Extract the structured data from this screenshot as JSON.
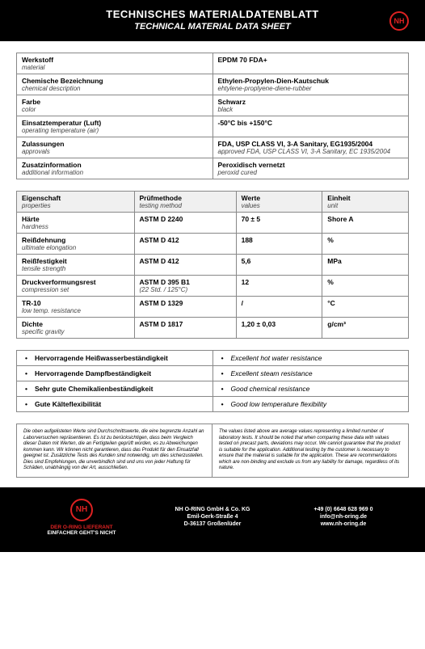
{
  "header": {
    "title_de": "TECHNISCHES MATERIALDATENBLATT",
    "title_en": "TECHNICAL MATERIAL DATA SHEET",
    "logo_text": "NH"
  },
  "info": [
    {
      "label_de": "Werkstoff",
      "label_en": "material",
      "value_de": "EPDM 70 FDA+",
      "value_en": ""
    },
    {
      "label_de": "Chemische Bezeichnung",
      "label_en": "chemical description",
      "value_de": "Ethylen-Propylen-Dien-Kautschuk",
      "value_en": "ehtylene-proplyene-diene-rubber"
    },
    {
      "label_de": "Farbe",
      "label_en": "color",
      "value_de": "Schwarz",
      "value_en": "black"
    },
    {
      "label_de": "Einsatztemperatur (Luft)",
      "label_en": "operating temperature (air)",
      "value_de": "-50°C bis +150°C",
      "value_en": ""
    },
    {
      "label_de": "Zulassungen",
      "label_en": "approvals",
      "value_de": "FDA, USP CLASS VI, 3-A Sanitary, EG1935/2004",
      "value_en": "approved FDA, USP CLASS VI, 3-A Sanitary, EC 1935/2004"
    },
    {
      "label_de": "Zusatzinformation",
      "label_en": "additional information",
      "value_de": "Peroxidisch vernetzt",
      "value_en": "peroxid cured"
    }
  ],
  "props_header": {
    "c1_de": "Eigenschaft",
    "c1_en": "properties",
    "c2_de": "Prüfmethode",
    "c2_en": "testing method",
    "c3_de": "Werte",
    "c3_en": "values",
    "c4_de": "Einheit",
    "c4_en": "unit"
  },
  "props": [
    {
      "p_de": "Härte",
      "p_en": "hardness",
      "m": "ASTM D 2240",
      "m2": "",
      "v": "70 ± 5",
      "u": "Shore A"
    },
    {
      "p_de": "Reißdehnung",
      "p_en": "ultimate elongation",
      "m": "ASTM D 412",
      "m2": "",
      "v": "188",
      "u": "%"
    },
    {
      "p_de": "Reißfestigkeit",
      "p_en": "tensile strength",
      "m": "ASTM D 412",
      "m2": "",
      "v": "5,6",
      "u": "MPa"
    },
    {
      "p_de": "Druckverformungsrest",
      "p_en": "compression set",
      "m": "ASTM D 395 B1",
      "m2": "(22 Std. / 125°C)",
      "v": "12",
      "u": "%"
    },
    {
      "p_de": "TR-10",
      "p_en": "low temp. resistance",
      "m": "ASTM D 1329",
      "m2": "",
      "v": "/",
      "u": "°C"
    },
    {
      "p_de": "Dichte",
      "p_en": "specific gravity",
      "m": "ASTM D 1817",
      "m2": "",
      "v": "1,20 ± 0,03",
      "u": "g/cm³"
    }
  ],
  "features": [
    {
      "de": "Hervorragende Heißwasserbeständigkeit",
      "en": "Excellent hot water resistance"
    },
    {
      "de": "Hervorragende Dampfbeständigkeit",
      "en": "Excellent steam resistance"
    },
    {
      "de": "Sehr gute Chemikalienbeständigkeit",
      "en": "Good chemical resistance"
    },
    {
      "de": "Gute Kälteflexibilität",
      "en": "Good low temperature flexibility"
    }
  ],
  "disclaimer": {
    "de": "Die oben aufgelisteten Werte sind Durchschnittswerte, die eine begrenzte Anzahl an Laborversuchen repräsentieren. Es ist zu berücksichtigen, dass beim Vergleich dieser Daten mit Werten, die an Fertigteilen geprüft worden, es zu Abweichungen kommen kann. Wir können nicht garantieren, dass das Produkt für den Einsatzfall geeignet ist. Zusätzliche Tests des Kunden sind notwendig, um dies sicherzustellen. Dies sind Empfehlungen, die unverbindlich sind und uns von jeder Haftung für Schäden, unabhängig von der Art, ausschließen.",
    "en": "The values listed above are average values representing a limited number of laboratory tests. It should be noted that when comparing these data with values tested on precast parts, deviations may occur. We cannot guarantee that the product is suitable for the application. Additional testing by the customer is necessary to ensure that the material is suitable for the application. These are recommendations which are non-binding and exclude us from any liability for damage, regardless of its nature."
  },
  "footer": {
    "logo_text": "NH",
    "tag1": "DER O-RING LIEFERANT",
    "tag2": "EINFACHER GEHT'S NICHT",
    "company": "NH O-RING GmbH & Co. KG",
    "street": "Emil-Gerk-Straße 4",
    "city": "D-36137 Großenlüder",
    "phone": "+49 (0) 6648 628 969 0",
    "email": "info@nh-oring.de",
    "web": "www.nh-oring.de"
  }
}
